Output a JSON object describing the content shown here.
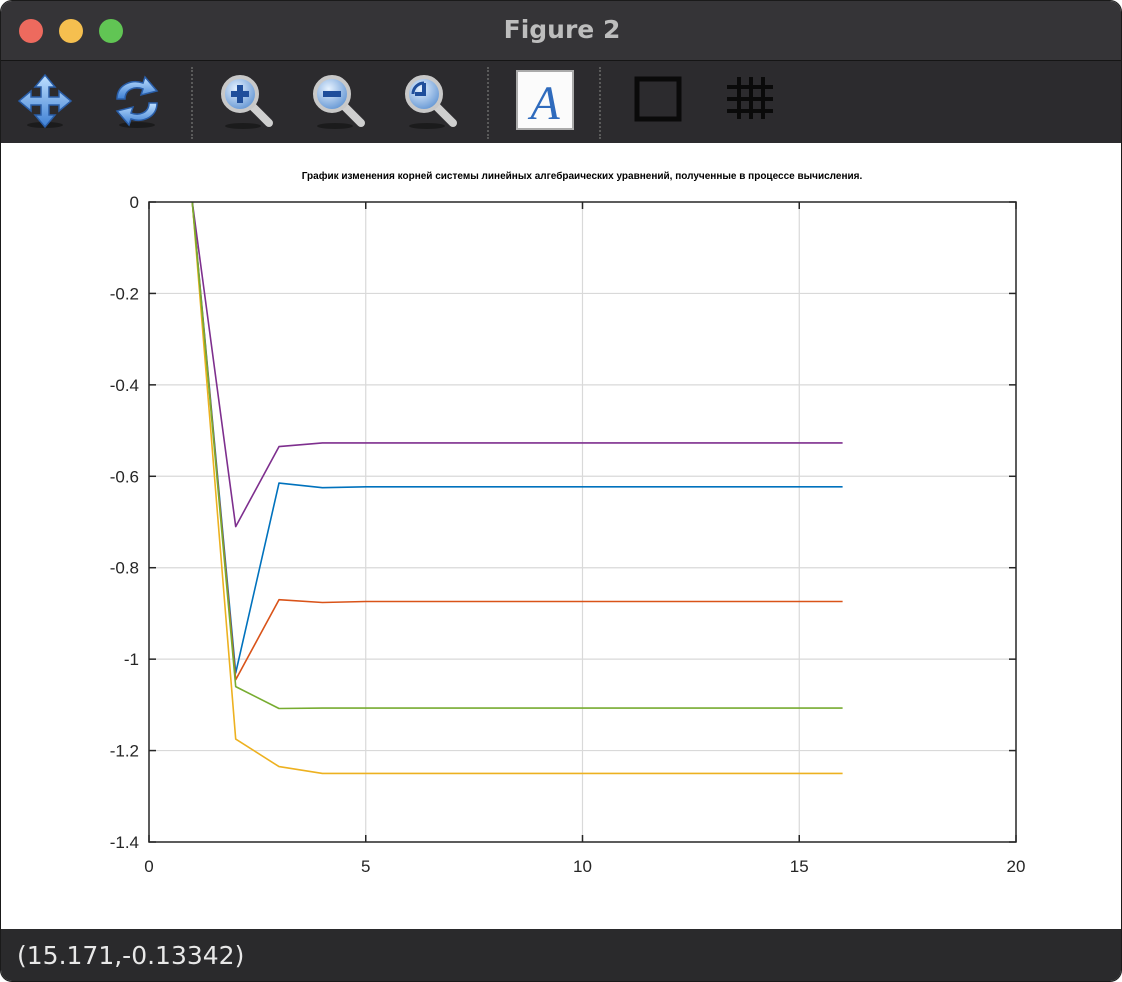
{
  "window": {
    "title": "Figure 2"
  },
  "toolbar": {
    "tools": [
      {
        "name": "pan-icon",
        "label": ""
      },
      {
        "name": "rotate-icon",
        "label": ""
      },
      {
        "name": "zoom-in-icon",
        "label": ""
      },
      {
        "name": "zoom-out-icon",
        "label": ""
      },
      {
        "name": "zoom-reset-icon",
        "label": ""
      },
      {
        "name": "text-icon",
        "label": "A"
      },
      {
        "name": "box-icon",
        "label": ""
      },
      {
        "name": "grid-icon",
        "label": ""
      }
    ]
  },
  "status": {
    "coords": "(15.171,-0.13342)"
  },
  "chart_data": {
    "type": "line",
    "title": "График изменения корней системы линейных алгебраических уравнений, полученные в процессе вычисления.",
    "xlabel": "",
    "ylabel": "",
    "xlim": [
      0,
      20
    ],
    "ylim": [
      -1.4,
      0
    ],
    "xticks": [
      0,
      5,
      10,
      15,
      20
    ],
    "yticks": [
      0,
      -0.2,
      -0.4,
      -0.6,
      -0.8,
      -1,
      -1.2,
      -1.4
    ],
    "xtick_labels": [
      "0",
      "5",
      "10",
      "15",
      "20"
    ],
    "ytick_labels": [
      "0",
      "-0.2",
      "-0.4",
      "-0.6",
      "-0.8",
      "-1",
      "-1.2",
      "-1.4"
    ],
    "grid": true,
    "x": [
      1,
      2,
      3,
      4,
      5,
      6,
      7,
      8,
      9,
      10,
      11,
      12,
      13,
      14,
      15,
      16
    ],
    "series": [
      {
        "color": "#0072BD",
        "values": [
          0,
          -1.03,
          -0.615,
          -0.625,
          -0.623,
          -0.623,
          -0.623,
          -0.623,
          -0.623,
          -0.623,
          -0.623,
          -0.623,
          -0.623,
          -0.623,
          -0.623,
          -0.623
        ]
      },
      {
        "color": "#D95319",
        "values": [
          0,
          -1.045,
          -0.87,
          -0.876,
          -0.874,
          -0.874,
          -0.874,
          -0.874,
          -0.874,
          -0.874,
          -0.874,
          -0.874,
          -0.874,
          -0.874,
          -0.874,
          -0.874
        ]
      },
      {
        "color": "#EDB120",
        "values": [
          0,
          -1.175,
          -1.235,
          -1.25,
          -1.25,
          -1.25,
          -1.25,
          -1.25,
          -1.25,
          -1.25,
          -1.25,
          -1.25,
          -1.25,
          -1.25,
          -1.25,
          -1.25
        ]
      },
      {
        "color": "#7E2F8E",
        "values": [
          0,
          -0.71,
          -0.535,
          -0.527,
          -0.527,
          -0.527,
          -0.527,
          -0.527,
          -0.527,
          -0.527,
          -0.527,
          -0.527,
          -0.527,
          -0.527,
          -0.527,
          -0.527
        ]
      },
      {
        "color": "#77AC30",
        "values": [
          0,
          -1.06,
          -1.108,
          -1.107,
          -1.107,
          -1.107,
          -1.107,
          -1.107,
          -1.107,
          -1.107,
          -1.107,
          -1.107,
          -1.107,
          -1.107,
          -1.107,
          -1.107
        ]
      }
    ]
  }
}
